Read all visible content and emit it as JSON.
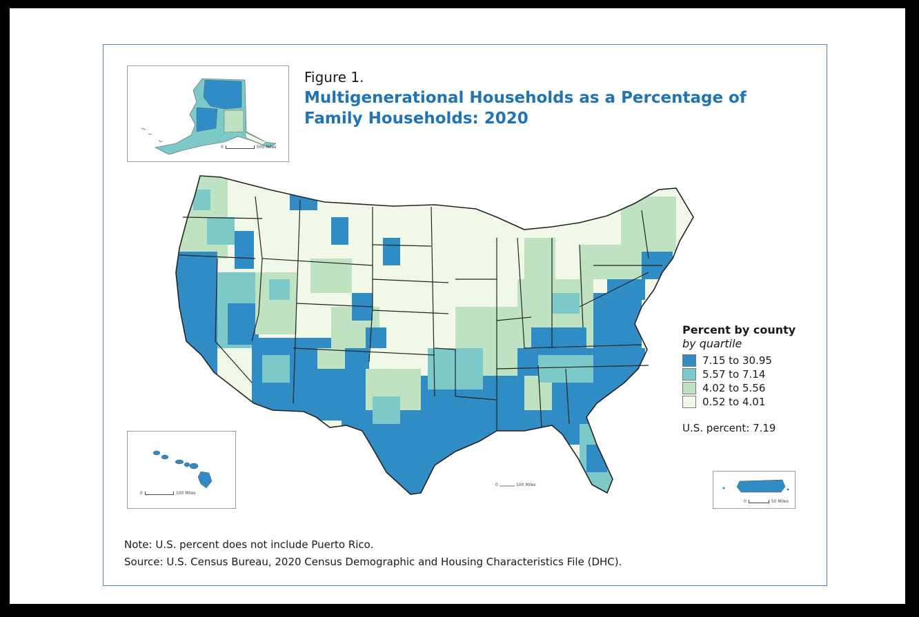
{
  "figure": {
    "label": "Figure 1.",
    "title": "Multigenerational Households as a Percentage of Family Households: 2020"
  },
  "legend": {
    "title": "Percent by county",
    "subtitle": "by quartile",
    "classes": [
      {
        "label": "7.15 to 30.95",
        "color": "#2f8cc4"
      },
      {
        "label": "5.57 to 7.14",
        "color": "#7cc9c9"
      },
      {
        "label": "4.02 to 5.56",
        "color": "#bfe2c0"
      },
      {
        "label": "0.52 to 4.01",
        "color": "#f2f8e8"
      }
    ],
    "us_percent": "U.S. percent: 7.19"
  },
  "insets": {
    "alaska_scale": {
      "start": "0",
      "end": "500 Miles"
    },
    "hawaii_scale": {
      "start": "0",
      "end": "100 Miles"
    },
    "puerto_rico_scale": {
      "start": "0",
      "end": "50 Miles"
    },
    "mainland_scale": {
      "start": "0",
      "end": "100 Miles"
    }
  },
  "footer": {
    "note": "Note: U.S. percent does not include Puerto Rico.",
    "source": "Source: U.S. Census Bureau, 2020 Census Demographic and Housing Characteristics File (DHC)."
  },
  "colors": {
    "title_blue": "#1f73b7",
    "panel_border": "#5b7fa8"
  }
}
